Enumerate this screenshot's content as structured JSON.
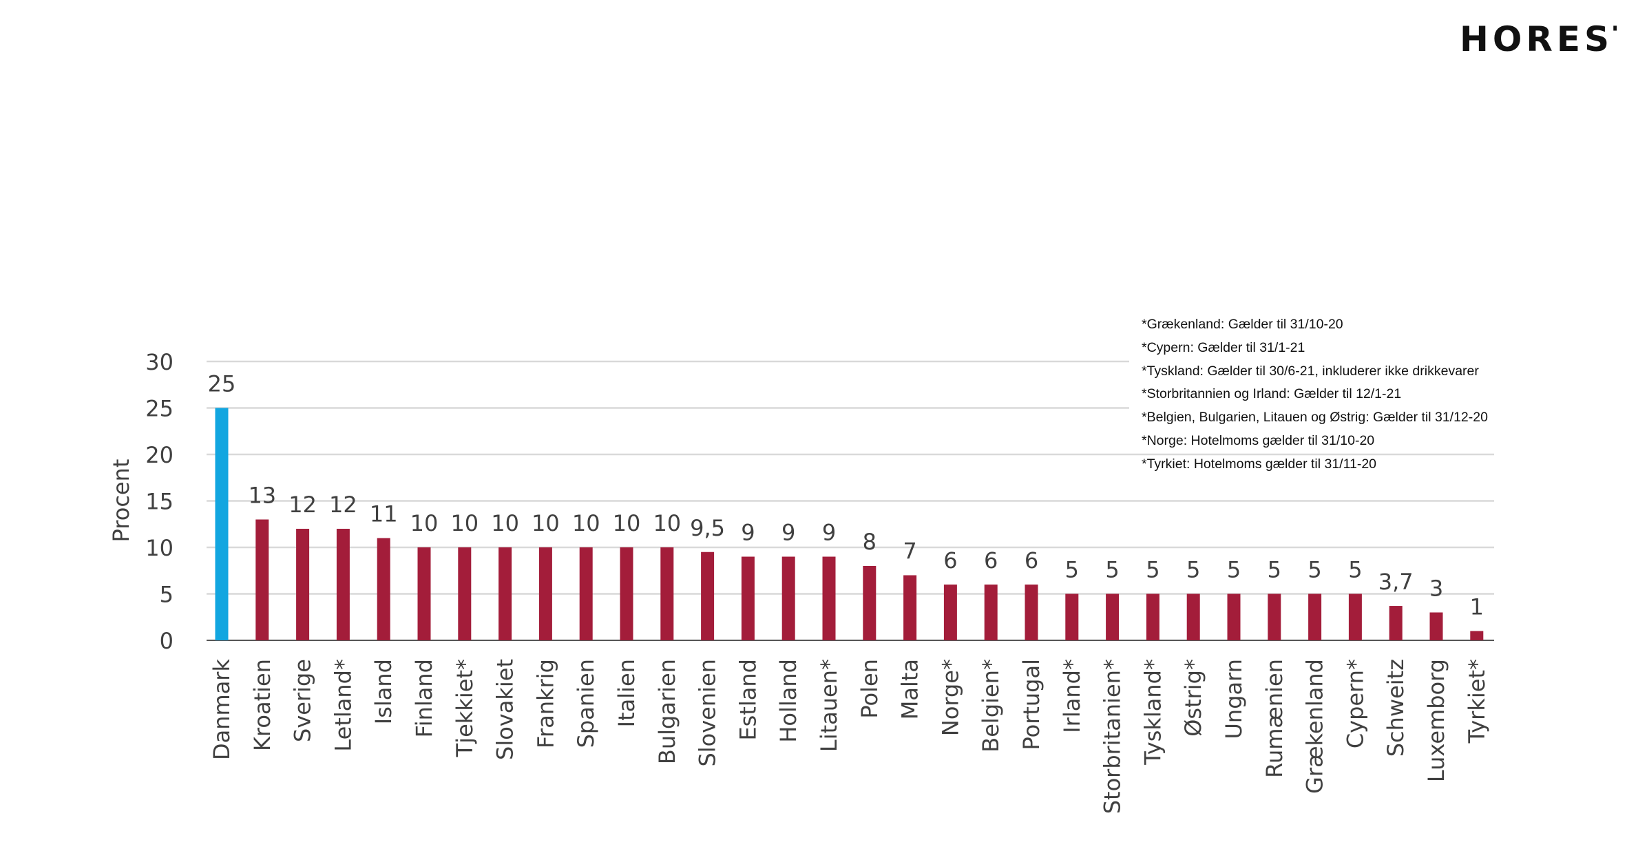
{
  "logo": {
    "text": "HORESTA"
  },
  "notes": [
    "*Grækenland: Gælder til 31/10-20",
    "*Cypern: Gælder til 31/1-21",
    "*Tyskland: Gælder til 30/6-21, inkluderer ikke drikkevarer",
    "*Storbritannien og Irland: Gælder til 12/1-21",
    "*Belgien, Bulgarien, Litauen og Østrig: Gælder til 31/12-20",
    "*Norge: Hotelmoms gælder til 31/10-20",
    "*Tyrkiet: Hotelmoms gælder til 31/11-20"
  ],
  "chart_data": {
    "type": "bar",
    "ylabel": "Procent",
    "xlabel": "",
    "ylim": [
      0,
      30
    ],
    "yticks": [
      0,
      5,
      10,
      15,
      20,
      25,
      30
    ],
    "grid": true,
    "categories": [
      "Danmark",
      "Kroatien",
      "Sverige",
      "Letland*",
      "Island",
      "Finland",
      "Tjekkiet*",
      "Slovakiet",
      "Frankrig",
      "Spanien",
      "Italien",
      "Bulgarien",
      "Slovenien",
      "Estland",
      "Holland",
      "Litauen*",
      "Polen",
      "Malta",
      "Norge*",
      "Belgien*",
      "Portugal",
      "Irland*",
      "Storbritanien*",
      "Tyskland*",
      "Østrig*",
      "Ungarn",
      "Rumænien",
      "Grækenland",
      "Cypern*",
      "Schweitz",
      "Luxemborg",
      "Tyrkiet*"
    ],
    "values": [
      25,
      13,
      12,
      12,
      11,
      10,
      10,
      10,
      10,
      10,
      10,
      10,
      9.5,
      9,
      9,
      9,
      8,
      7,
      6,
      6,
      6,
      5,
      5,
      5,
      5,
      5,
      5,
      5,
      5,
      3.7,
      3,
      1
    ],
    "value_labels": [
      "25",
      "13",
      "12",
      "12",
      "11",
      "10",
      "10",
      "10",
      "10",
      "10",
      "10",
      "10",
      "9,5",
      "9",
      "9",
      "9",
      "8",
      "7",
      "6",
      "6",
      "6",
      "5",
      "5",
      "5",
      "5",
      "5",
      "5",
      "5",
      "5",
      "3,7",
      "3",
      "1"
    ],
    "highlight_index": 0,
    "colors": {
      "highlight": "#12A6E0",
      "bar": "#A31D3A",
      "grid": "#D9D9D9",
      "axis": "#555555",
      "text": "#404040"
    }
  }
}
